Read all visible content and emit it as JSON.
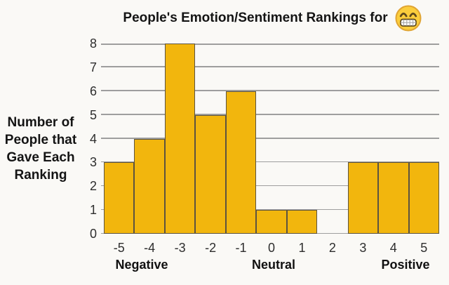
{
  "title": "People's Emotion/Sentiment Rankings for",
  "title_emoji": "beaming-face-with-smiling-eyes",
  "y_axis_title_lines": [
    "Number of",
    "People that",
    "Gave Each",
    "Ranking"
  ],
  "chart_data": {
    "type": "bar",
    "title": "People's Emotion/Sentiment Rankings for 😁",
    "categories": [
      "-5",
      "-4",
      "-3",
      "-2",
      "-1",
      "0",
      "1",
      "2",
      "3",
      "4",
      "5"
    ],
    "values": [
      3,
      4,
      8,
      5,
      6,
      1,
      1,
      0,
      3,
      3,
      3
    ],
    "group_labels": [
      "Negative",
      "Neutral",
      "Positive"
    ],
    "ylabel": "Number of People that Gave Each Ranking",
    "xlabel": "",
    "ylim": [
      0,
      8
    ],
    "ytick_interval": 1,
    "grid": true,
    "legend": false,
    "bar_style": "adjacent-histogram"
  },
  "colors": {
    "background": "#FAF9F6",
    "bar_fill": "#F2B60D",
    "bar_border": "#5C5340",
    "gridline": "#9E9E9E",
    "emoji_face": "#FBCD3C",
    "emoji_outline": "#E0A432"
  }
}
